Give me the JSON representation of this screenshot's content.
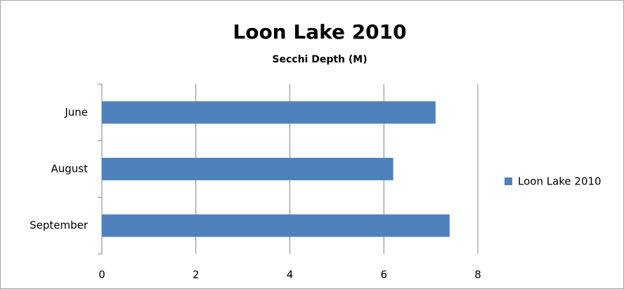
{
  "chart_data": {
    "type": "bar",
    "orientation": "horizontal",
    "title": "Loon Lake 2010",
    "subtitle": "Secchi Depth (M)",
    "categories": [
      "June",
      "August",
      "September"
    ],
    "series": [
      {
        "name": "Loon Lake 2010",
        "color": "#4f81bd",
        "values": [
          7.1,
          6.2,
          7.4
        ]
      }
    ],
    "xlim": [
      0,
      8
    ],
    "xticks": [
      0,
      2,
      4,
      6,
      8
    ],
    "grid": true,
    "legend": "right"
  }
}
